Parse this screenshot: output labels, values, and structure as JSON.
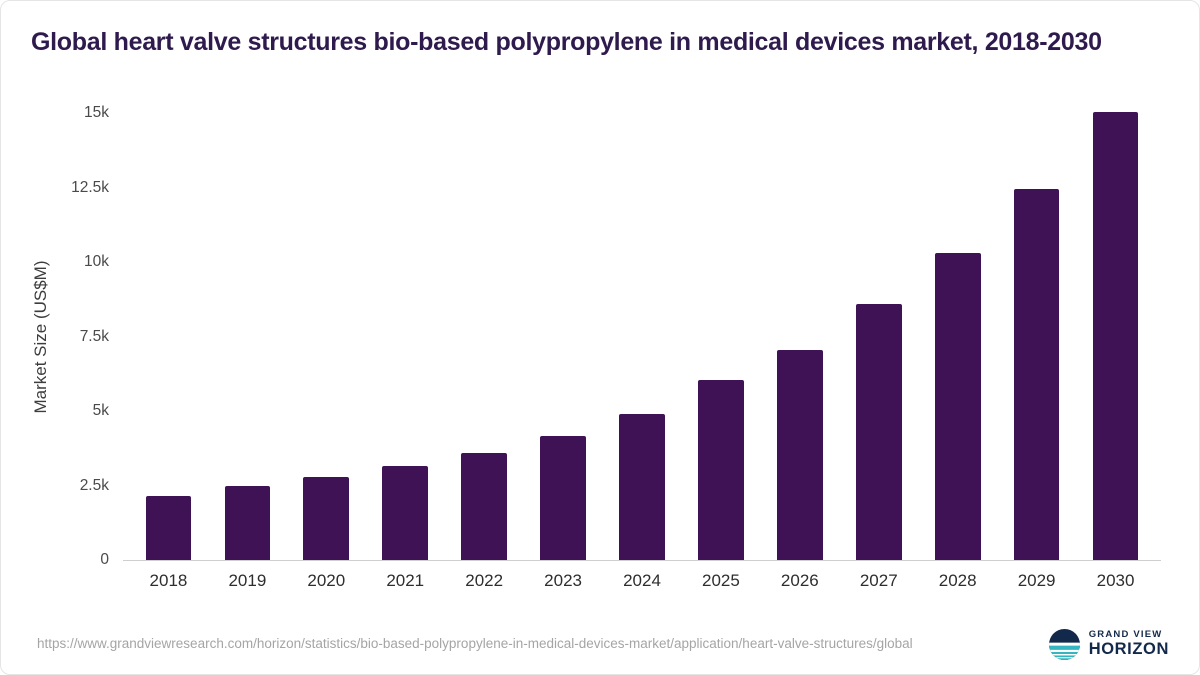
{
  "title": "Global heart valve structures bio-based polypropylene in medical devices market, 2018-2030",
  "chart_data": {
    "type": "bar",
    "title": "Global heart valve structures bio-based polypropylene in medical devices market, 2018-2030",
    "categories": [
      "2018",
      "2019",
      "2020",
      "2021",
      "2022",
      "2023",
      "2024",
      "2025",
      "2026",
      "2027",
      "2028",
      "2029",
      "2030"
    ],
    "values": [
      2150,
      2500,
      2800,
      3150,
      3600,
      4150,
      4900,
      6050,
      7050,
      8600,
      10300,
      12450,
      15050
    ],
    "xlabel": "",
    "ylabel": "Market Size (US$M)",
    "ylim": [
      0,
      15000
    ],
    "yticks": [
      {
        "value": 0,
        "label": "0"
      },
      {
        "value": 2500,
        "label": "2.5k"
      },
      {
        "value": 5000,
        "label": "5k"
      },
      {
        "value": 7500,
        "label": "7.5k"
      },
      {
        "value": 10000,
        "label": "10k"
      },
      {
        "value": 12500,
        "label": "12.5k"
      },
      {
        "value": 15000,
        "label": "15k"
      }
    ],
    "grid": false,
    "legend_position": "none",
    "bar_color": "#3e1254"
  },
  "footer": {
    "source_url": "https://www.grandviewresearch.com/horizon/statistics/bio-based-polypropylene-in-medical-devices-market/application/heart-valve-structures/global",
    "logo": {
      "line1": "GRAND VIEW",
      "line2": "HORIZON"
    }
  },
  "colors": {
    "title_text": "#2e1a4d",
    "bar": "#3e1254",
    "axis_text": "#4a4a4a",
    "url_text": "#a5a5a5",
    "logo_navy": "#13294b",
    "logo_teal": "#35b5c1"
  }
}
